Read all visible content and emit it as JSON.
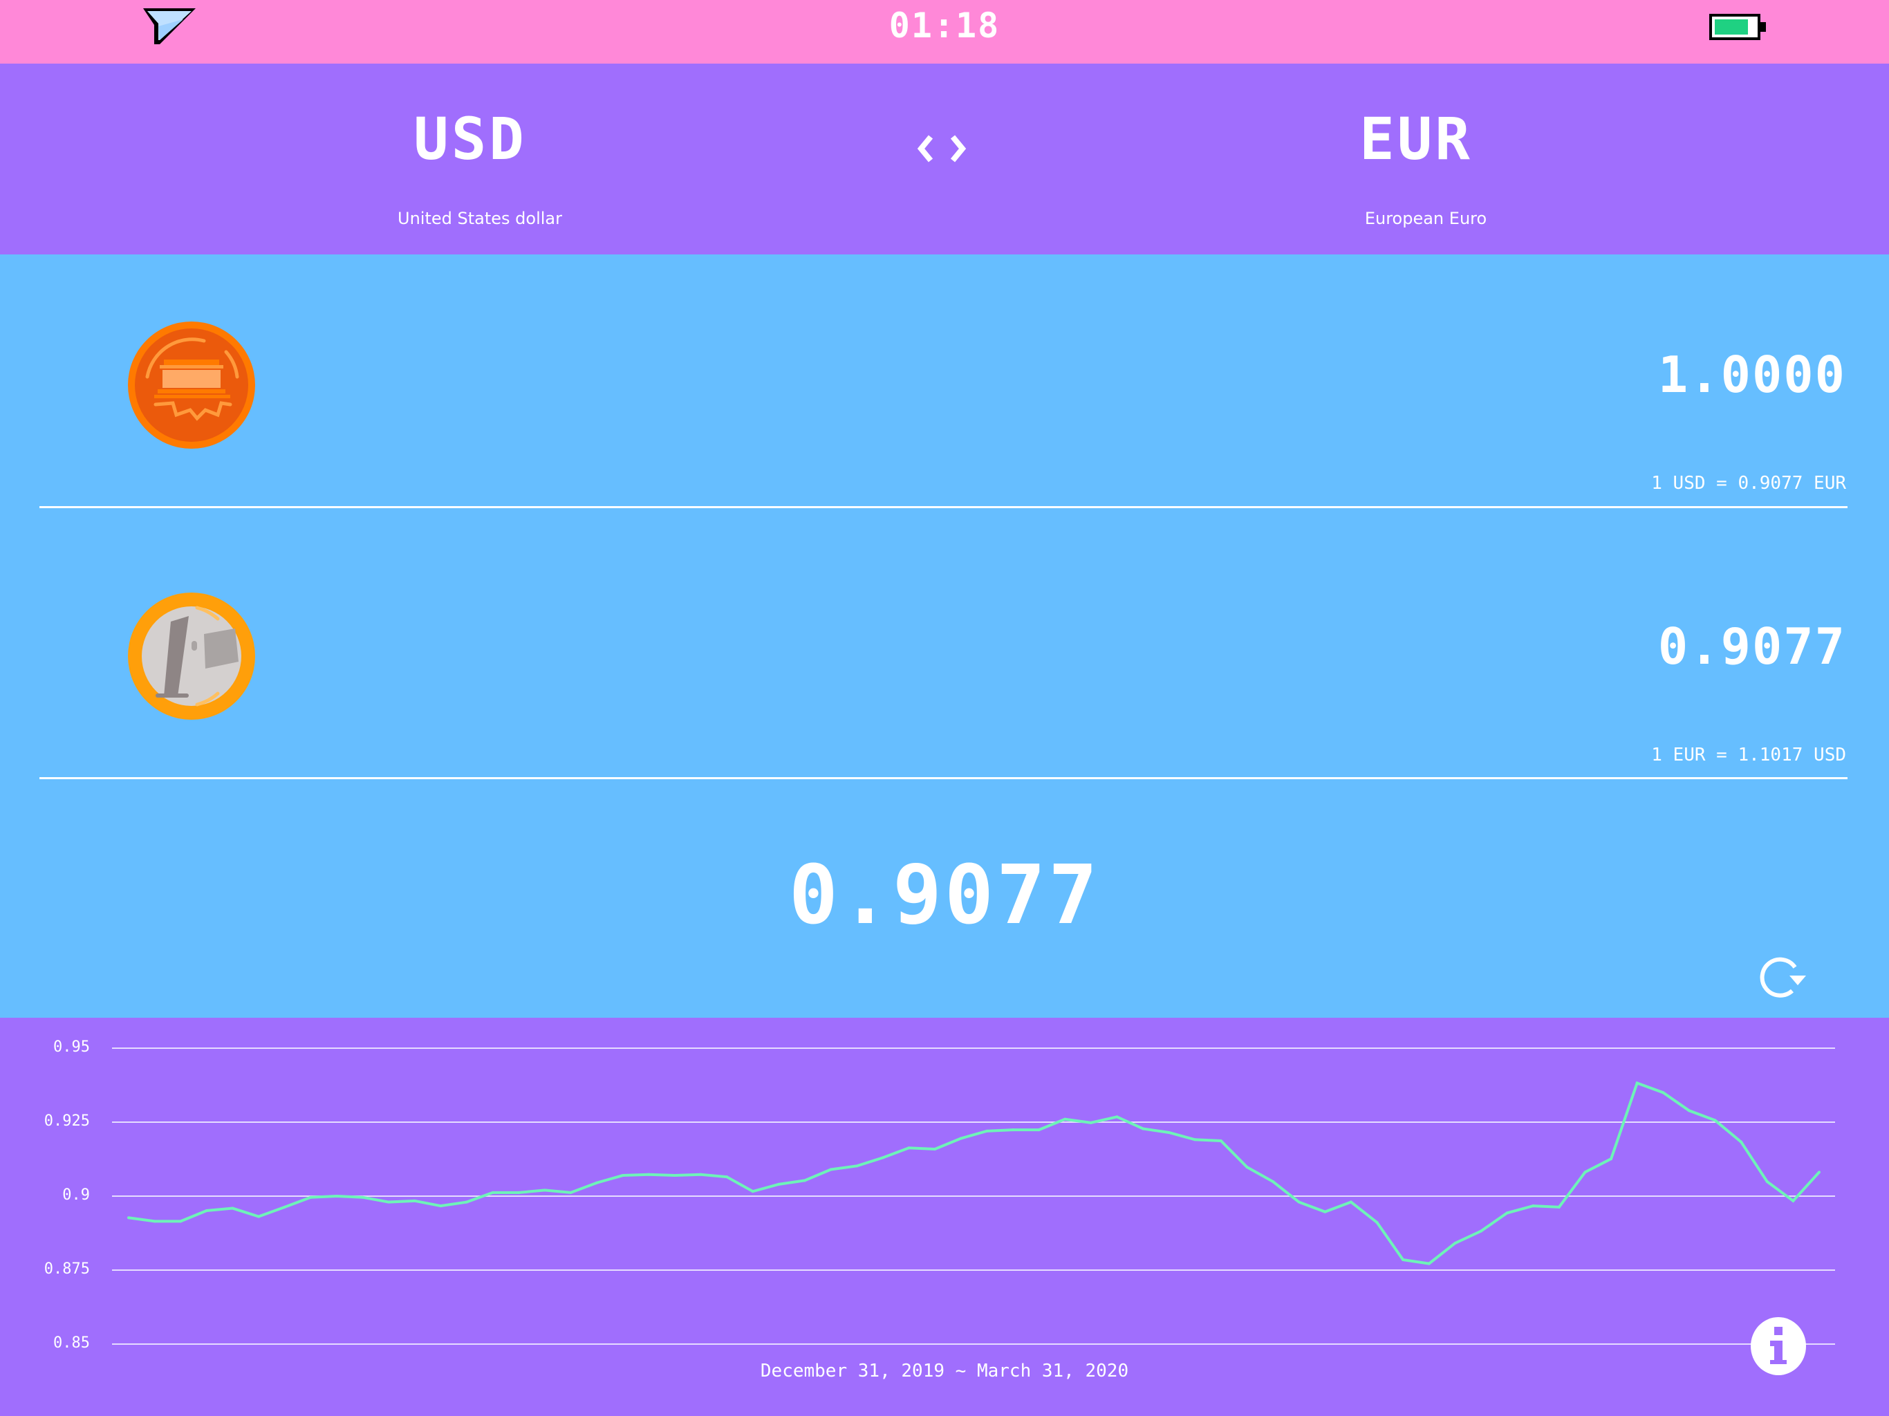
{
  "status_bar": {
    "time": "01:18",
    "wifi_icon": "wifi-signal-icon",
    "battery_icon": "battery-icon",
    "battery_level": 0.8
  },
  "header": {
    "from": {
      "code": "USD",
      "name": "United States dollar"
    },
    "to": {
      "code": "EUR",
      "name": "European Euro"
    },
    "swap_icon": "swap-arrows-icon"
  },
  "rows": [
    {
      "icon": "usd-coin-icon",
      "value": "1.0000",
      "rate": "1 USD = 0.9077 EUR"
    },
    {
      "icon": "euro-coin-icon",
      "value": "0.9077",
      "rate": "1 EUR = 1.1017 USD"
    }
  ],
  "main_value": "0.9077",
  "refresh_icon": "refresh-icon",
  "info_icon": "info-icon",
  "colors": {
    "status": "#FF88D8",
    "header": "#A06EFD",
    "body": "#66BEFF",
    "line": "#6EF3B8"
  },
  "chart_data": {
    "type": "line",
    "title": "",
    "xlabel": "December 31, 2019 ~ March 31, 2020",
    "ylabel": "",
    "ylim": [
      0.85,
      0.95
    ],
    "yticks": [
      "0.95",
      "0.925",
      "0.9",
      "0.875",
      "0.85"
    ],
    "grid": true,
    "series": [
      {
        "values": [
          0.8927,
          0.8915,
          0.8915,
          0.8951,
          0.8959,
          0.8931,
          0.8963,
          0.8996,
          0.9,
          0.8996,
          0.898,
          0.8984,
          0.8967,
          0.898,
          0.9012,
          0.9012,
          0.902,
          0.9012,
          0.9045,
          0.907,
          0.9073,
          0.907,
          0.9073,
          0.9065,
          0.9016,
          0.904,
          0.9053,
          0.909,
          0.9102,
          0.913,
          0.9163,
          0.9159,
          0.9195,
          0.922,
          0.9224,
          0.9224,
          0.926,
          0.9248,
          0.9268,
          0.9228,
          0.9215,
          0.9191,
          0.9187,
          0.9098,
          0.9049,
          0.898,
          0.8947,
          0.898,
          0.8911,
          0.8785,
          0.8772,
          0.8841,
          0.8882,
          0.8943,
          0.8967,
          0.8963,
          0.9081,
          0.9126,
          0.9382,
          0.935,
          0.9289,
          0.9256,
          0.9183,
          0.9049,
          0.8984,
          0.9081
        ]
      }
    ]
  }
}
